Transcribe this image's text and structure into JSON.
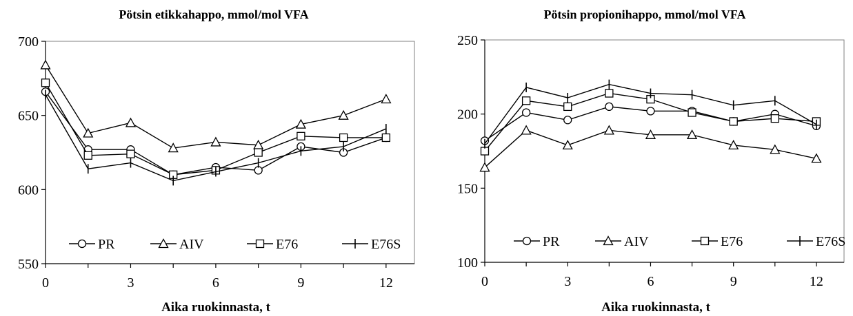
{
  "chart_data": [
    {
      "type": "line",
      "title": "Pötsin etikkahappo, mmol/mol VFA",
      "xlabel": "Aika ruokinnasta, t",
      "ylabel": "",
      "x": [
        0,
        1.5,
        3,
        4.5,
        6,
        7.5,
        9,
        10.5,
        12
      ],
      "xticks": [
        0,
        3,
        6,
        9,
        12
      ],
      "yticks": [
        550,
        600,
        650,
        700
      ],
      "xlim": [
        0,
        13
      ],
      "ylim": [
        550,
        700
      ],
      "grid": false,
      "legend_position": "bottom",
      "series": [
        {
          "name": "PR",
          "marker": "circle",
          "values": [
            666,
            627,
            627,
            610,
            615,
            613,
            629,
            625,
            635
          ]
        },
        {
          "name": "AIV",
          "marker": "triangle",
          "values": [
            684,
            638,
            645,
            628,
            632,
            630,
            644,
            650,
            661
          ]
        },
        {
          "name": "E76",
          "marker": "square",
          "values": [
            672,
            623,
            624,
            610,
            613,
            625,
            636,
            635,
            635
          ]
        },
        {
          "name": "E76S",
          "marker": "plus",
          "values": [
            664,
            614,
            618,
            606,
            612,
            618,
            626,
            629,
            641
          ]
        }
      ]
    },
    {
      "type": "line",
      "title": "Pötsin propionihappo, mmol/mol VFA",
      "xlabel": "Aika ruokinnasta, t",
      "ylabel": "",
      "x": [
        0,
        1.5,
        3,
        4.5,
        6,
        7.5,
        9,
        10.5,
        12
      ],
      "xticks": [
        0,
        3,
        6,
        9,
        12
      ],
      "yticks": [
        100,
        150,
        200,
        250
      ],
      "xlim": [
        0,
        13
      ],
      "ylim": [
        100,
        250
      ],
      "grid": false,
      "legend_position": "bottom",
      "series": [
        {
          "name": "PR",
          "marker": "circle",
          "values": [
            182,
            201,
            196,
            205,
            202,
            202,
            195,
            200,
            192
          ]
        },
        {
          "name": "AIV",
          "marker": "triangle",
          "values": [
            164,
            189,
            179,
            189,
            186,
            186,
            179,
            176,
            170
          ]
        },
        {
          "name": "E76",
          "marker": "square",
          "values": [
            175,
            209,
            205,
            214,
            210,
            201,
            195,
            197,
            195
          ]
        },
        {
          "name": "E76S",
          "marker": "plus",
          "values": [
            180,
            218,
            211,
            220,
            214,
            213,
            206,
            209,
            193
          ]
        }
      ]
    }
  ]
}
